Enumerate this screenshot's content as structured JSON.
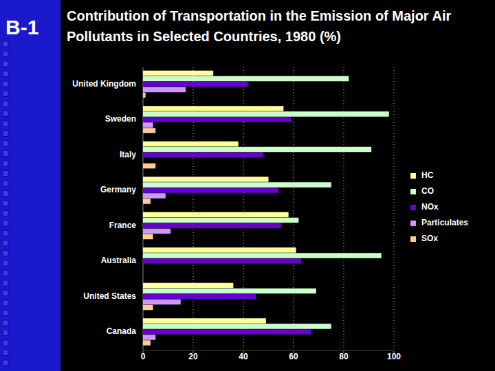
{
  "chart_data": {
    "type": "bar",
    "orientation": "horizontal",
    "title": "Contribution of Transportation in the Emission of Major Air Pollutants in Selected Countries, 1980 (%)",
    "annotations": [
      "B-1"
    ],
    "categories": [
      "United Kingdom",
      "Sweden",
      "Italy",
      "Germany",
      "France",
      "Australia",
      "United States",
      "Canada"
    ],
    "series": [
      {
        "name": "HC",
        "color": "#ffff99",
        "values": [
          28,
          56,
          38,
          50,
          58,
          61,
          36,
          49
        ]
      },
      {
        "name": "CO",
        "color": "#ccffcc",
        "values": [
          82,
          98,
          91,
          75,
          62,
          95,
          69,
          75
        ]
      },
      {
        "name": "NOx",
        "color": "#6600cc",
        "values": [
          42,
          59,
          48,
          54,
          55,
          63,
          45,
          67
        ]
      },
      {
        "name": "Particulates",
        "color": "#cc99ff",
        "values": [
          17,
          4,
          null,
          9,
          11,
          null,
          15,
          5
        ]
      },
      {
        "name": "SOx",
        "color": "#ffcc99",
        "values": [
          1,
          5,
          5,
          3,
          4,
          null,
          4,
          3
        ]
      }
    ],
    "xlim": [
      0,
      100
    ],
    "xticks": [
      0,
      20,
      40,
      60,
      80,
      100
    ],
    "grid": true,
    "legend": "right"
  }
}
